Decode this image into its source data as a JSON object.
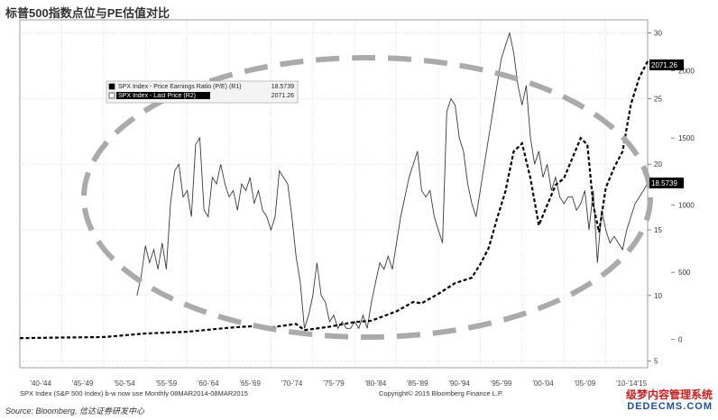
{
  "title": "标普500指数点位与PE估值对比",
  "footer": {
    "left": "SPX Index (S&P 500 Index) b-w now use  Monthly 08MAR2014-08MAR2015",
    "center": "Copyright© 2015 Bloomberg Finance L.P.",
    "source": "Source: Bloomberg, 信达证券研发中心"
  },
  "watermark": {
    "line1": "级梦内容管理系统",
    "line2": "DEDECMS.COM"
  },
  "colors": {
    "pe_line": "#3a3a3a",
    "price_line": "#000000",
    "ellipse": "#aaaaaa",
    "label_bg": "#000000"
  },
  "chart_data": {
    "type": "line",
    "x_tick_labels": [
      "'40-'44",
      "'45-'49",
      "'50-'54",
      "'55-'59",
      "'60-'64",
      "'65-'69",
      "'70-'74",
      "'75-'79",
      "'80-'84",
      "'85-'89",
      "'90-'94",
      "'95-'99",
      "'00-'04",
      "'05-'09",
      "'10-'14",
      "'15"
    ],
    "x_range": [
      1940,
      2015
    ],
    "axis_r1": {
      "ticks": [
        5,
        10,
        15,
        20,
        25,
        30
      ],
      "range": [
        4.5,
        31
      ]
    },
    "axis_r2": {
      "ticks": [
        0,
        500,
        1000,
        1500,
        2000
      ],
      "range": [
        -210,
        2380
      ]
    },
    "last_labels": {
      "price": "2071.26",
      "pe": "18.5739"
    },
    "legend": [
      {
        "label": "SPX Index - Price Earnings Ratio (P/E) (R1)",
        "value": "18.5739"
      },
      {
        "label": "SPX Index - Last Price (R2)",
        "value": "2071.26"
      }
    ],
    "series": [
      {
        "name": "SPX Index - Price Earnings Ratio (P/E) (R1)",
        "style": "solid",
        "axis": "R1",
        "x": [
          1954.0,
          1954.5,
          1955.0,
          1955.5,
          1956.0,
          1956.5,
          1957.0,
          1957.5,
          1958.0,
          1958.5,
          1959.0,
          1959.5,
          1960.0,
          1960.5,
          1961.0,
          1961.5,
          1962.0,
          1962.5,
          1963.0,
          1963.5,
          1964.0,
          1964.5,
          1965.0,
          1965.5,
          1966.0,
          1966.5,
          1967.0,
          1967.5,
          1968.0,
          1968.5,
          1969.0,
          1969.5,
          1970.0,
          1970.5,
          1971.0,
          1971.5,
          1972.0,
          1972.5,
          1973.0,
          1973.5,
          1974.0,
          1974.5,
          1975.0,
          1975.5,
          1976.0,
          1976.5,
          1977.0,
          1977.5,
          1978.0,
          1978.5,
          1979.0,
          1979.5,
          1980.0,
          1980.5,
          1981.0,
          1981.5,
          1982.0,
          1982.5,
          1983.0,
          1983.5,
          1984.0,
          1984.5,
          1985.0,
          1985.5,
          1986.0,
          1986.5,
          1987.0,
          1987.5,
          1988.0,
          1988.5,
          1989.0,
          1989.5,
          1990.0,
          1990.5,
          1991.0,
          1991.5,
          1992.0,
          1992.5,
          1993.0,
          1993.5,
          1994.0,
          1994.5,
          1995.0,
          1995.5,
          1996.0,
          1996.5,
          1997.0,
          1997.5,
          1998.0,
          1998.5,
          1999.0,
          1999.5,
          2000.0,
          2000.5,
          2001.0,
          2001.5,
          2002.0,
          2002.5,
          2003.0,
          2003.5,
          2004.0,
          2004.5,
          2005.0,
          2005.5,
          2006.0,
          2006.5,
          2007.0,
          2007.5,
          2008.0,
          2008.5,
          2009.0,
          2009.5,
          2010.0,
          2010.5,
          2011.0,
          2011.5,
          2012.0,
          2012.5,
          2013.0,
          2013.5,
          2014.0,
          2014.5,
          2015.0
        ],
        "y": [
          10.0,
          11.5,
          13.8,
          12.5,
          13.5,
          12.0,
          14.0,
          12.0,
          17.0,
          19.5,
          20.0,
          17.5,
          18.0,
          16.0,
          21.5,
          22.0,
          16.5,
          16.0,
          19.0,
          18.5,
          20.0,
          18.5,
          17.5,
          18.0,
          16.5,
          18.5,
          18.0,
          19.0,
          17.0,
          18.0,
          16.5,
          16.0,
          15.0,
          16.0,
          19.5,
          19.0,
          18.5,
          16.0,
          13.0,
          11.0,
          7.5,
          8.5,
          10.0,
          12.5,
          10.0,
          9.5,
          8.0,
          8.5,
          7.5,
          8.0,
          7.5,
          7.5,
          8.0,
          7.5,
          8.5,
          7.5,
          9.5,
          11.0,
          12.5,
          12.0,
          13.0,
          12.0,
          14.0,
          16.0,
          17.5,
          19.0,
          20.0,
          21.0,
          18.0,
          17.5,
          18.0,
          16.0,
          15.0,
          14.0,
          24.0,
          25.0,
          24.5,
          22.0,
          21.0,
          18.5,
          17.0,
          16.0,
          18.0,
          20.0,
          22.0,
          24.0,
          26.0,
          28.0,
          29.0,
          30.0,
          28.5,
          26.0,
          24.5,
          26.0,
          22.0,
          20.0,
          21.0,
          19.0,
          20.0,
          18.0,
          19.0,
          17.5,
          17.0,
          17.5,
          17.5,
          16.5,
          17.0,
          18.0,
          15.0,
          18.0,
          12.5,
          16.5,
          15.0,
          14.0,
          14.5,
          14.0,
          13.5,
          15.0,
          16.0,
          17.0,
          17.5,
          18.0,
          18.57
        ]
      },
      {
        "name": "SPX Index - Last Price (R2)",
        "style": "dashed",
        "axis": "R2",
        "x": [
          1940,
          1945,
          1950,
          1955,
          1960,
          1965,
          1968,
          1970,
          1973,
          1974,
          1977,
          1980,
          1982,
          1985,
          1987,
          1988,
          1990,
          1992,
          1994,
          1995,
          1996,
          1997,
          1998,
          1999,
          2000,
          2001,
          2002,
          2003,
          2004,
          2005,
          2006,
          2007,
          2007.8,
          2008.5,
          2009.2,
          2010,
          2011,
          2012,
          2013,
          2014,
          2015
        ],
        "y": [
          10,
          15,
          18,
          45,
          58,
          88,
          100,
          90,
          116,
          70,
          95,
          130,
          140,
          210,
          280,
          270,
          340,
          420,
          460,
          560,
          680,
          900,
          1100,
          1400,
          1460,
          1200,
          850,
          1000,
          1150,
          1200,
          1350,
          1500,
          1450,
          1000,
          800,
          1130,
          1280,
          1400,
          1750,
          1950,
          2071.26
        ]
      }
    ]
  }
}
